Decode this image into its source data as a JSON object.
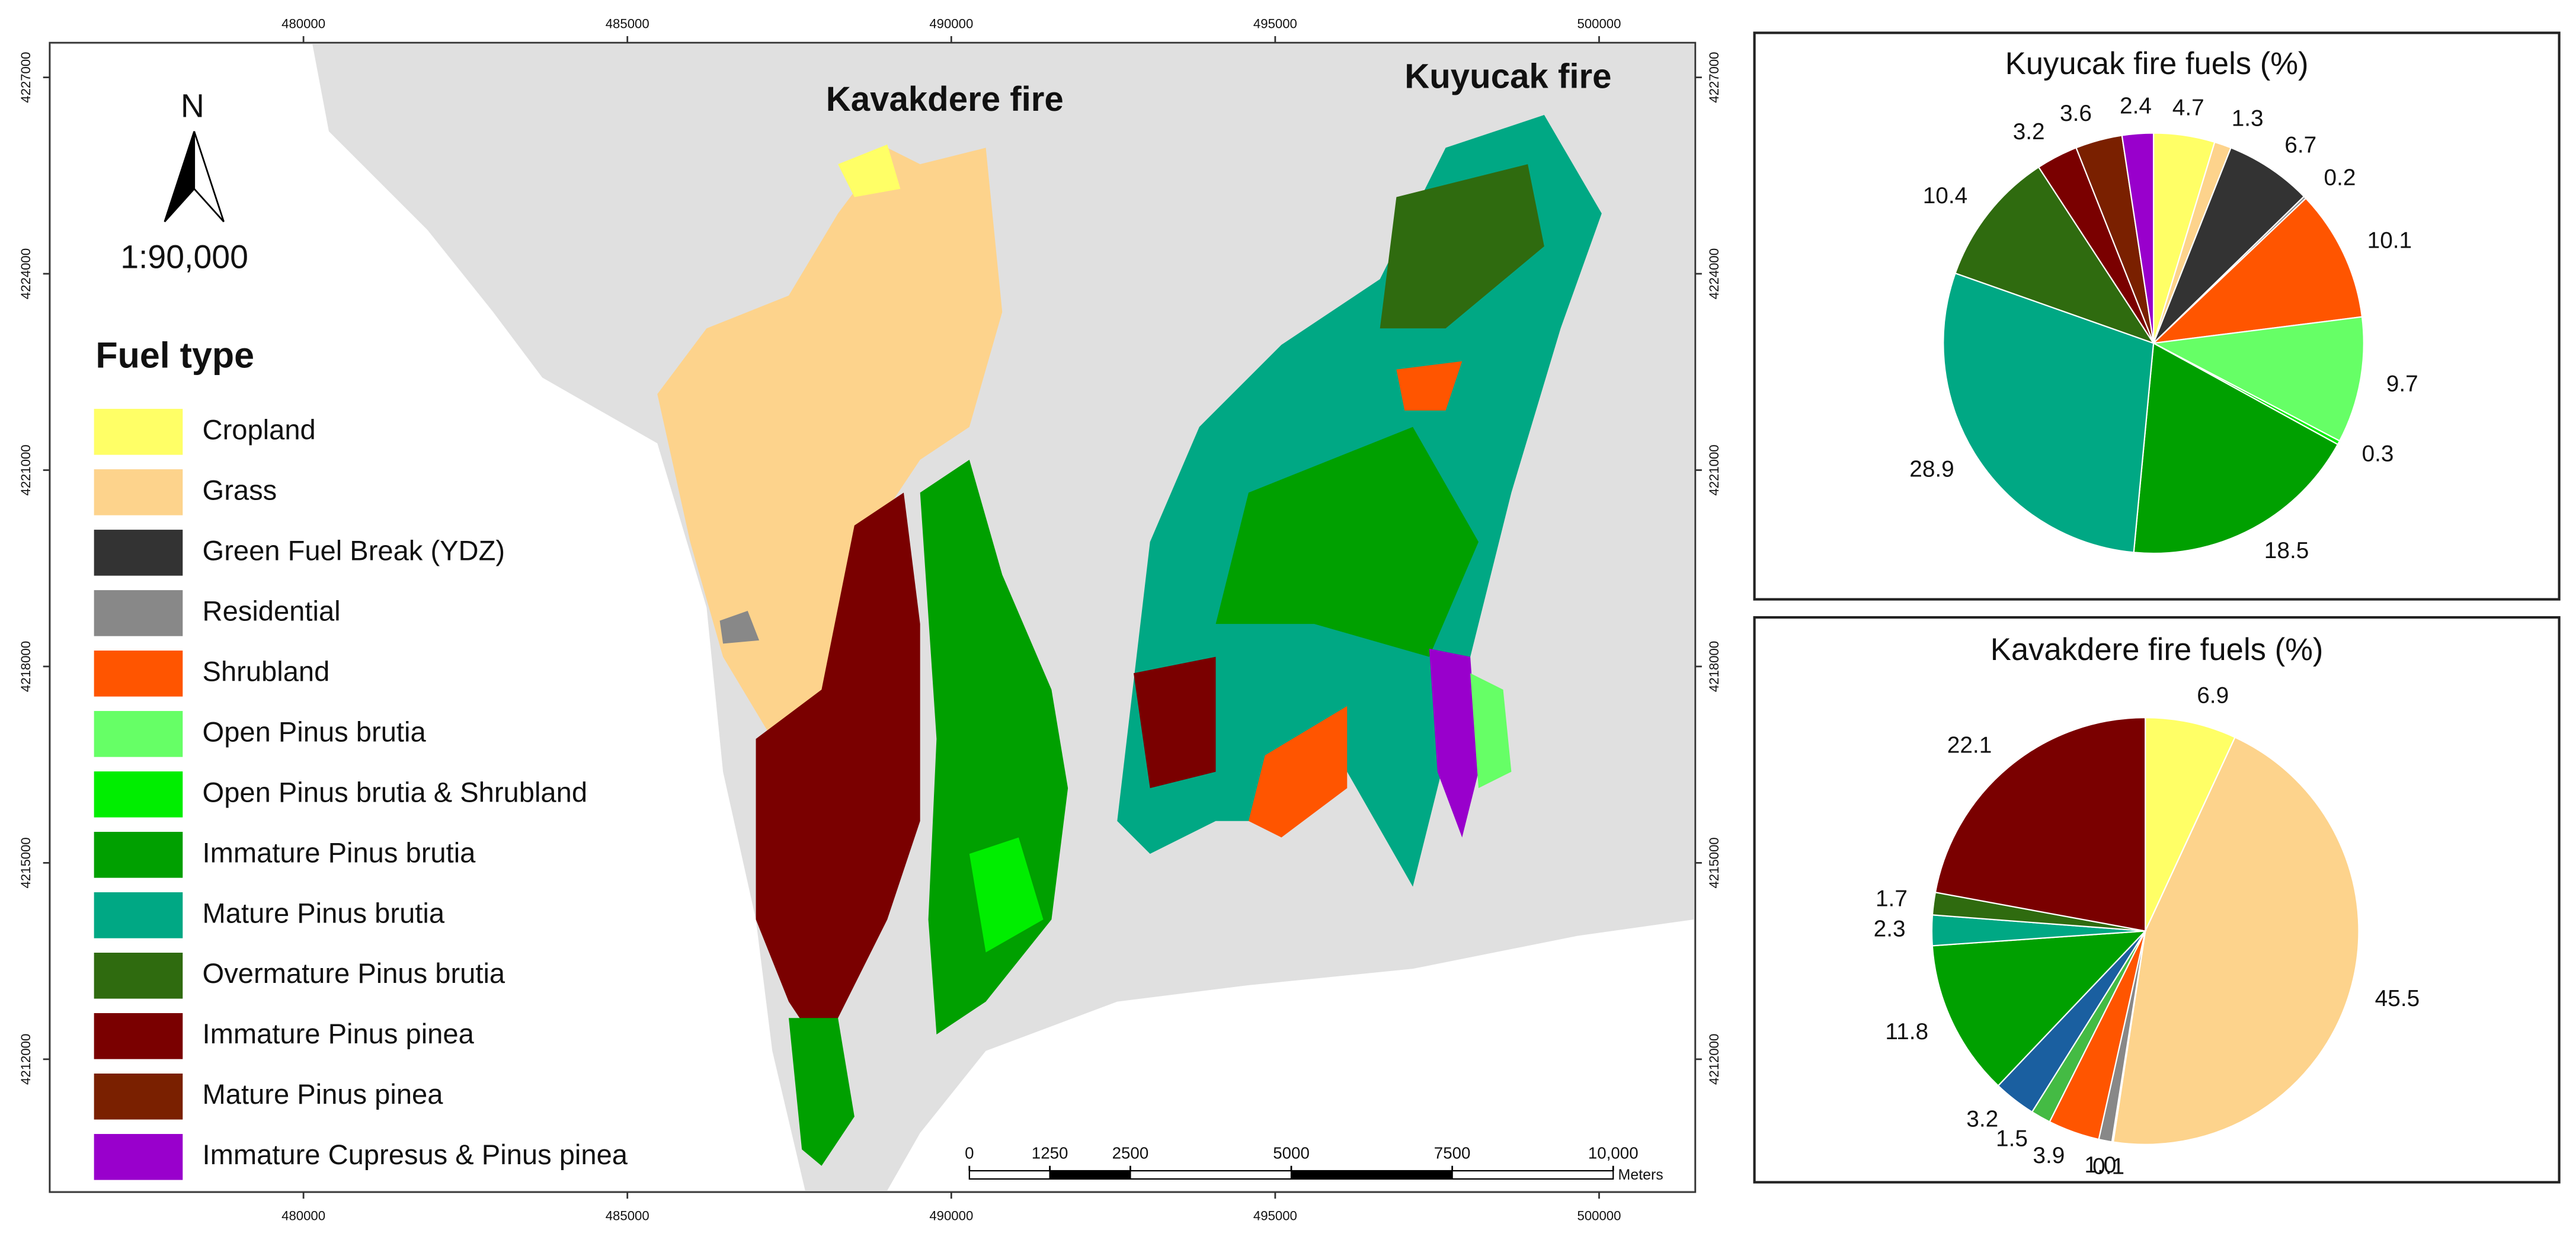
{
  "map": {
    "labels": [
      "Kavakdere fire",
      "Kuyucak fire"
    ],
    "north": "N",
    "scale": "1:90,000",
    "legend": {
      "title": "Fuel type",
      "items": [
        {
          "name": "Cropland",
          "color": "#ffff66"
        },
        {
          "name": "Grass",
          "color": "#fdd38c"
        },
        {
          "name": "Green Fuel Break (YDZ)",
          "color": "#333333"
        },
        {
          "name": "Residential",
          "color": "#888888"
        },
        {
          "name": "Shrubland",
          "color": "#ff5500"
        },
        {
          "name": "Open Pinus brutia",
          "color": "#66ff66"
        },
        {
          "name": "Open Pinus brutia & Shrubland",
          "color": "#00ee00"
        },
        {
          "name": "Immature Pinus brutia",
          "color": "#00a000"
        },
        {
          "name": "Mature Pinus brutia",
          "color": "#00a884"
        },
        {
          "name": "Overmature Pinus brutia",
          "color": "#2f6b0f"
        },
        {
          "name": "Immature Pinus pinea",
          "color": "#7a0000"
        },
        {
          "name": "Mature Pinus pinea",
          "color": "#7a2000"
        },
        {
          "name": "Immature Cupresus & Pinus pinea",
          "color": "#9900cc"
        }
      ]
    },
    "xlim": [
      476082,
      501485
    ],
    "ylim": [
      4209970,
      4227530
    ],
    "xticks": [
      480000,
      485000,
      490000,
      495000,
      500000
    ],
    "yticks": [
      4212000,
      4215000,
      4218000,
      4221000,
      4224000,
      4227000
    ],
    "scale_bar": {
      "lim": [
        0,
        10000
      ],
      "ticks": [
        0,
        1250,
        2500,
        5000,
        7500,
        {
          "value": 10000,
          "label": "10,000"
        }
      ],
      "unit": "Meters"
    }
  },
  "chart_data": [
    {
      "type": "pie",
      "title": "Kuyucak fire fuels (%)",
      "values": [
        4.7,
        1.3,
        6.7,
        0.2,
        10.1,
        9.7,
        0.3,
        18.5,
        28.9,
        10.4,
        3.2,
        3.6,
        2.4
      ],
      "value_labels": [
        "4.7",
        "1.3",
        "6.7",
        "0.2",
        "10.1",
        "9.7",
        "0.3",
        "18.5",
        "28.9",
        "10.4",
        "3.2",
        "3.6",
        "2.4"
      ],
      "colors": [
        "#ffff66",
        "#fdd38c",
        "#333333",
        "#888888",
        "#ff5500",
        "#66ff66",
        "#00ee00",
        "#00a000",
        "#00a884",
        "#2f6b0f",
        "#7a0000",
        "#7a2000",
        "#9900cc"
      ]
    },
    {
      "type": "pie",
      "title": "Kavakdere fire fuels (%)",
      "values": [
        6.9,
        45.5,
        0.1,
        1.0,
        3.9,
        1.5,
        3.2,
        11.8,
        2.3,
        1.7,
        22.1
      ],
      "value_labels": [
        "6.9",
        "45.5",
        "0.1",
        "1.0",
        "3.9",
        "1.5",
        "3.2",
        "11.8",
        "2.3",
        "1.7",
        "22.1"
      ],
      "colors": [
        "#ffff66",
        "#fdd38c",
        "#555555",
        "#888888",
        "#ff5500",
        "#44bb44",
        "#1a5fa0",
        "#00a000",
        "#00a884",
        "#2f6b0f",
        "#7a0000"
      ]
    }
  ]
}
